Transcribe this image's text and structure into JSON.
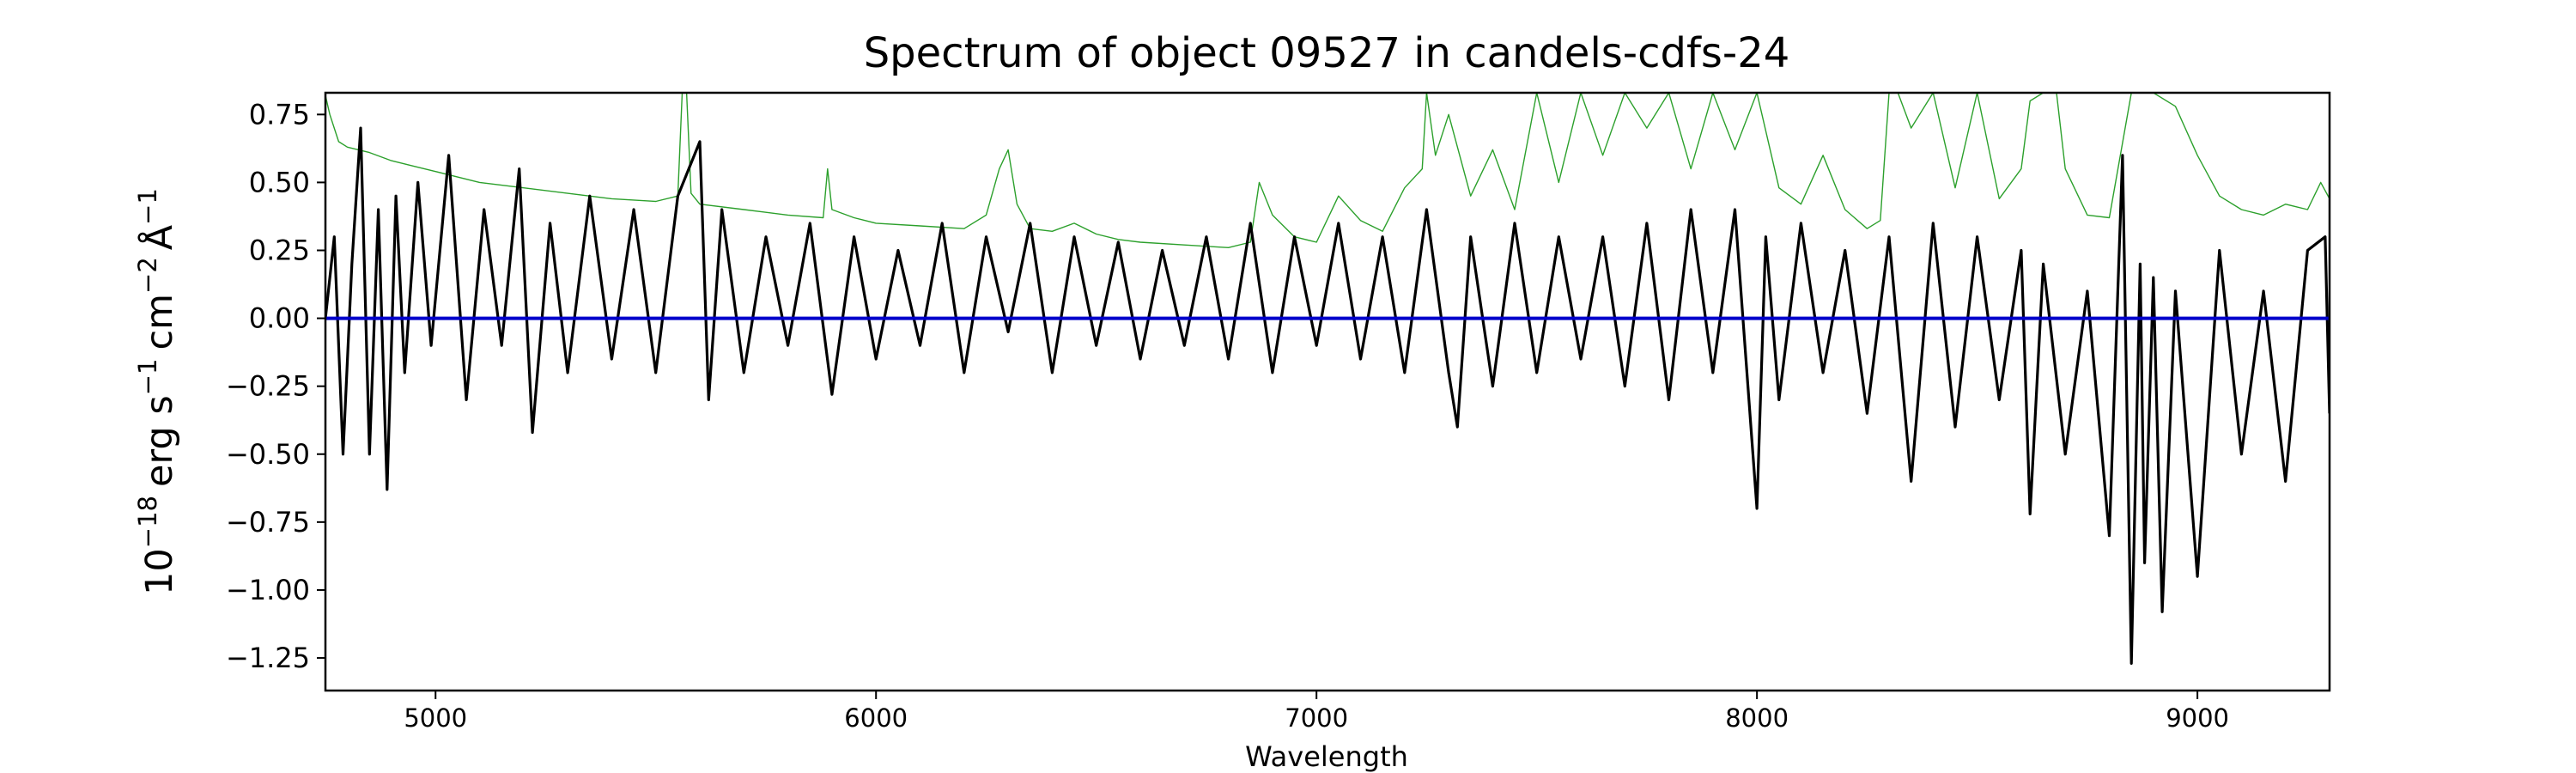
{
  "chart_data": {
    "type": "line",
    "title": "Spectrum of object 09527 in candels-cdfs-24",
    "xlabel": "Wavelength",
    "ylabel_base": "10",
    "ylabel_exp": "−18",
    "ylabel_parts": [
      "erg s",
      "−1",
      "cm",
      "−2",
      "Å",
      "−1"
    ],
    "xlim": [
      4750,
      9300
    ],
    "ylim": [
      -1.37,
      0.83
    ],
    "x_ticks": [
      5000,
      6000,
      7000,
      8000,
      9000
    ],
    "x_tick_labels": [
      "5000",
      "6000",
      "7000",
      "8000",
      "9000"
    ],
    "y_ticks": [
      0.75,
      0.5,
      0.25,
      0.0,
      -0.25,
      -0.5,
      -0.75,
      -1.0,
      -1.25
    ],
    "y_tick_labels": [
      "0.75",
      "0.50",
      "0.25",
      "0.00",
      "−0.25",
      "−0.50",
      "−0.75",
      "−1.00",
      "−1.25"
    ],
    "grid": false,
    "series": [
      {
        "role": "error",
        "color": "#2ca02c",
        "x": [
          4750,
          4760,
          4780,
          4800,
          4850,
          4900,
          4950,
          5000,
          5100,
          5200,
          5300,
          5400,
          5500,
          5550,
          5560,
          5570,
          5580,
          5600,
          5700,
          5800,
          5880,
          5890,
          5900,
          5950,
          6000,
          6100,
          6200,
          6250,
          6280,
          6300,
          6320,
          6350,
          6400,
          6450,
          6500,
          6550,
          6600,
          6700,
          6800,
          6850,
          6870,
          6900,
          6950,
          7000,
          7050,
          7100,
          7150,
          7200,
          7240,
          7250,
          7270,
          7300,
          7350,
          7400,
          7450,
          7500,
          7550,
          7600,
          7650,
          7700,
          7750,
          7800,
          7850,
          7900,
          7950,
          8000,
          8050,
          8100,
          8150,
          8200,
          8250,
          8280,
          8300,
          8320,
          8350,
          8400,
          8450,
          8500,
          8550,
          8600,
          8620,
          8650,
          8680,
          8700,
          8750,
          8800,
          8850,
          8870,
          8900,
          8950,
          9000,
          9050,
          9100,
          9150,
          9200,
          9250,
          9280,
          9300
        ],
        "values": [
          0.82,
          0.75,
          0.65,
          0.63,
          0.61,
          0.58,
          0.56,
          0.54,
          0.5,
          0.48,
          0.46,
          0.44,
          0.43,
          0.45,
          0.83,
          0.83,
          0.46,
          0.42,
          0.4,
          0.38,
          0.37,
          0.55,
          0.4,
          0.37,
          0.35,
          0.34,
          0.33,
          0.38,
          0.55,
          0.62,
          0.42,
          0.33,
          0.32,
          0.35,
          0.31,
          0.29,
          0.28,
          0.27,
          0.26,
          0.28,
          0.5,
          0.38,
          0.3,
          0.28,
          0.45,
          0.36,
          0.32,
          0.48,
          0.55,
          0.83,
          0.6,
          0.75,
          0.45,
          0.62,
          0.4,
          0.83,
          0.5,
          0.83,
          0.6,
          0.83,
          0.7,
          0.83,
          0.55,
          0.83,
          0.62,
          0.83,
          0.48,
          0.42,
          0.6,
          0.4,
          0.33,
          0.36,
          0.83,
          0.83,
          0.7,
          0.83,
          0.48,
          0.83,
          0.44,
          0.55,
          0.8,
          0.83,
          0.83,
          0.55,
          0.38,
          0.37,
          0.83,
          0.83,
          0.83,
          0.78,
          0.6,
          0.45,
          0.4,
          0.38,
          0.42,
          0.4,
          0.5,
          0.44
        ]
      },
      {
        "role": "flux",
        "color": "#000000",
        "x": [
          4750,
          4770,
          4790,
          4810,
          4830,
          4850,
          4870,
          4890,
          4910,
          4930,
          4960,
          4990,
          5030,
          5070,
          5110,
          5150,
          5190,
          5220,
          5260,
          5300,
          5350,
          5400,
          5450,
          5500,
          5550,
          5600,
          5620,
          5650,
          5700,
          5750,
          5800,
          5850,
          5900,
          5950,
          6000,
          6050,
          6100,
          6150,
          6200,
          6250,
          6300,
          6350,
          6400,
          6450,
          6500,
          6550,
          6600,
          6650,
          6700,
          6750,
          6800,
          6850,
          6900,
          6950,
          7000,
          7050,
          7100,
          7150,
          7200,
          7250,
          7300,
          7320,
          7350,
          7400,
          7450,
          7500,
          7550,
          7600,
          7650,
          7700,
          7750,
          7800,
          7850,
          7900,
          7950,
          8000,
          8020,
          8050,
          8100,
          8150,
          8200,
          8250,
          8300,
          8350,
          8400,
          8450,
          8500,
          8550,
          8600,
          8620,
          8650,
          8700,
          8750,
          8800,
          8830,
          8850,
          8870,
          8880,
          8900,
          8920,
          8950,
          9000,
          9050,
          9100,
          9150,
          9200,
          9250,
          9290,
          9300
        ],
        "values": [
          0.0,
          0.3,
          -0.5,
          0.2,
          0.7,
          -0.5,
          0.4,
          -0.63,
          0.45,
          -0.2,
          0.5,
          -0.1,
          0.6,
          -0.3,
          0.4,
          -0.1,
          0.55,
          -0.42,
          0.35,
          -0.2,
          0.45,
          -0.15,
          0.4,
          -0.2,
          0.45,
          0.65,
          -0.3,
          0.4,
          -0.2,
          0.3,
          -0.1,
          0.35,
          -0.28,
          0.3,
          -0.15,
          0.25,
          -0.1,
          0.35,
          -0.2,
          0.3,
          -0.05,
          0.35,
          -0.2,
          0.3,
          -0.1,
          0.28,
          -0.15,
          0.25,
          -0.1,
          0.3,
          -0.15,
          0.35,
          -0.2,
          0.3,
          -0.1,
          0.35,
          -0.15,
          0.3,
          -0.2,
          0.4,
          -0.2,
          -0.4,
          0.3,
          -0.25,
          0.35,
          -0.2,
          0.3,
          -0.15,
          0.3,
          -0.25,
          0.35,
          -0.3,
          0.4,
          -0.2,
          0.4,
          -0.7,
          0.3,
          -0.3,
          0.35,
          -0.2,
          0.25,
          -0.35,
          0.3,
          -0.6,
          0.35,
          -0.4,
          0.3,
          -0.3,
          0.25,
          -0.72,
          0.2,
          -0.5,
          0.1,
          -0.8,
          0.6,
          -1.27,
          0.2,
          -0.9,
          0.15,
          -1.08,
          0.1,
          -0.95,
          0.25,
          -0.5,
          0.1,
          -0.6,
          0.25,
          0.3,
          -0.35
        ]
      },
      {
        "role": "zero",
        "color": "#0000cc",
        "x": [
          4750,
          9300
        ],
        "values": [
          0.0,
          0.0
        ]
      }
    ]
  }
}
